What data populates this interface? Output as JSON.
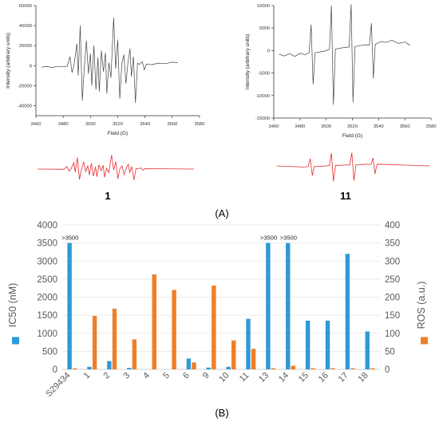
{
  "figure": {
    "panel_a_label": "(A)",
    "panel_b_label": "(B)"
  },
  "colors": {
    "ic50": "#2E9AD6",
    "ros": "#F07E26",
    "sim": "#E8292B",
    "exp": "#444444",
    "axis_text": "#595959"
  },
  "chart_data": [
    {
      "type": "line",
      "panel": "A-left",
      "xlabel": "Field (G)",
      "ylabel": "Intensity (arbitrary units)",
      "xlim": [
        3460,
        3580
      ],
      "ylim": [
        -50000,
        60000
      ],
      "x_ticks": [
        "3460",
        "3480",
        "3500",
        "3520",
        "3540",
        "3560",
        "3580"
      ],
      "y_ticks": [
        "-40000",
        "-20000",
        "0",
        "20000",
        "40000",
        "60000"
      ],
      "x_tick_values": [
        3460,
        3480,
        3500,
        3520,
        3540,
        3560,
        3580
      ],
      "y_tick_values": [
        -40000,
        -20000,
        0,
        20000,
        40000,
        60000
      ],
      "series": [
        {
          "values": [
            [
              3464,
              -1500
            ],
            [
              3468,
              -900
            ],
            [
              3472,
              -1800
            ],
            [
              3476,
              -800
            ],
            [
              3480,
              -1200
            ],
            [
              3483,
              -500
            ],
            [
              3485,
              9000
            ],
            [
              3486.5,
              -7000
            ],
            [
              3488,
              800
            ],
            [
              3490,
              22000
            ],
            [
              3491,
              -10000
            ],
            [
              3492.5,
              40000
            ],
            [
              3494,
              -35000
            ],
            [
              3495.5,
              -2000
            ],
            [
              3497,
              25000
            ],
            [
              3498.5,
              -8000
            ],
            [
              3500,
              12000
            ],
            [
              3501,
              -20000
            ],
            [
              3502.5,
              20000
            ],
            [
              3504,
              -24000
            ],
            [
              3505.5,
              8000
            ],
            [
              3506.5,
              -26000
            ],
            [
              3508,
              15000
            ],
            [
              3509.5,
              -6000
            ],
            [
              3511,
              13000
            ],
            [
              3512,
              -28000
            ],
            [
              3513.5,
              3000
            ],
            [
              3515,
              -12000
            ],
            [
              3517,
              48000
            ],
            [
              3518.5,
              -3000
            ],
            [
              3520,
              26000
            ],
            [
              3521.5,
              -33000
            ],
            [
              3523,
              2000
            ],
            [
              3524.5,
              11000
            ],
            [
              3526,
              -18000
            ],
            [
              3527.5,
              3000
            ],
            [
              3529,
              17000
            ],
            [
              3530,
              -11000
            ],
            [
              3531.5,
              9000
            ],
            [
              3533,
              -37000
            ],
            [
              3534.5,
              2500
            ],
            [
              3536,
              1200
            ],
            [
              3538,
              4000
            ],
            [
              3539.5,
              -4000
            ],
            [
              3541,
              1500
            ],
            [
              3545,
              1000
            ],
            [
              3550,
              2500
            ],
            [
              3555,
              2000
            ],
            [
              3560,
              3500
            ],
            [
              3564,
              3000
            ]
          ]
        }
      ],
      "caption": "1"
    },
    {
      "type": "line",
      "panel": "A-right",
      "xlabel": "Field (G)",
      "ylabel": "Intensity (arbitrary units)",
      "xlim": [
        3460,
        3580
      ],
      "ylim": [
        -15000,
        10000
      ],
      "x_ticks": [
        "3460",
        "3480",
        "3500",
        "3520",
        "3540",
        "3560",
        "3580"
      ],
      "y_ticks": [
        "-15000",
        "-10000",
        "-5000",
        "0",
        "5000",
        "10000"
      ],
      "x_tick_values": [
        3460,
        3480,
        3500,
        3520,
        3540,
        3560,
        3580
      ],
      "y_tick_values": [
        -15000,
        -10000,
        -5000,
        0,
        5000,
        10000
      ],
      "series": [
        {
          "values": [
            [
              3464,
              -800
            ],
            [
              3468,
              -1200
            ],
            [
              3472,
              -700
            ],
            [
              3476,
              -1300
            ],
            [
              3480,
              -600
            ],
            [
              3484,
              -900
            ],
            [
              3487,
              -500
            ],
            [
              3488.5,
              5800
            ],
            [
              3490,
              -7500
            ],
            [
              3491.5,
              -500
            ],
            [
              3495,
              -300
            ],
            [
              3499,
              -100
            ],
            [
              3502.5,
              300
            ],
            [
              3504,
              10000
            ],
            [
              3505.5,
              -12000
            ],
            [
              3507,
              300
            ],
            [
              3510,
              500
            ],
            [
              3514,
              700
            ],
            [
              3517.5,
              800
            ],
            [
              3519,
              10300
            ],
            [
              3520.5,
              -11500
            ],
            [
              3522,
              900
            ],
            [
              3526,
              1100
            ],
            [
              3530,
              1300
            ],
            [
              3533,
              1200
            ],
            [
              3534.5,
              6100
            ],
            [
              3536,
              -6200
            ],
            [
              3537.5,
              1400
            ],
            [
              3542,
              2000
            ],
            [
              3546,
              1800
            ],
            [
              3550,
              2300
            ],
            [
              3555,
              1600
            ],
            [
              3560,
              1900
            ],
            [
              3564,
              1200
            ]
          ]
        }
      ],
      "caption": "11"
    },
    {
      "type": "bar",
      "panel": "B",
      "categories": [
        "S29434",
        "1",
        "2",
        "3",
        "4",
        "5",
        "6",
        "9",
        "10",
        "11",
        "13",
        "14",
        "15",
        "16",
        "17",
        "18"
      ],
      "y_left_label": "IC50 (nM)",
      "y_right_label": "ROS (a.u.)",
      "y_left_lim": [
        0,
        4000
      ],
      "y_right_lim": [
        0,
        400
      ],
      "y_left_ticks": [
        "0",
        "500",
        "1000",
        "1500",
        "2000",
        "2500",
        "3000",
        "3500",
        "4000"
      ],
      "y_right_ticks": [
        "0",
        "50",
        "100",
        "150",
        "200",
        "250",
        "300",
        "350",
        "400"
      ],
      "y_left_tick_values": [
        0,
        500,
        1000,
        1500,
        2000,
        2500,
        3000,
        3500,
        4000
      ],
      "y_right_tick_values": [
        0,
        50,
        100,
        150,
        200,
        250,
        300,
        350,
        400
      ],
      "series": [
        {
          "name": "IC50",
          "axis": "left",
          "values": [
            3500,
            70,
            230,
            40,
            0,
            0,
            300,
            50,
            70,
            1400,
            3500,
            3500,
            1350,
            1350,
            3200,
            1050
          ]
        },
        {
          "name": "ROS",
          "axis": "right",
          "values": [
            3,
            148,
            168,
            83,
            263,
            220,
            19,
            232,
            80,
            57,
            3,
            10,
            3,
            3,
            3,
            3
          ]
        }
      ],
      "annotations": [
        {
          "category": "S29434",
          "text": ">3500"
        },
        {
          "category": "13",
          "text": ">3500"
        },
        {
          "category": "14",
          "text": ">3500"
        }
      ],
      "grid": true,
      "legend": "axis-colored markers"
    }
  ]
}
